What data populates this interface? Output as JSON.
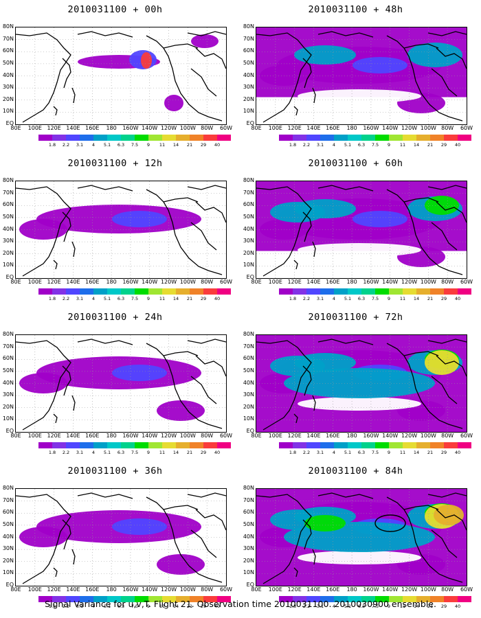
{
  "panels": [
    {
      "title": "2010031100 + 00h",
      "level": 0
    },
    {
      "title": "2010031100 + 48h",
      "level": 3
    },
    {
      "title": "2010031100 + 12h",
      "level": 1
    },
    {
      "title": "2010031100 + 60h",
      "level": 4
    },
    {
      "title": "2010031100 + 24h",
      "level": 2
    },
    {
      "title": "2010031100 + 72h",
      "level": 5
    },
    {
      "title": "2010031100 + 36h",
      "level": 2
    },
    {
      "title": "2010031100 + 84h",
      "level": 6,
      "circle": true
    }
  ],
  "lat_labels": [
    "80N",
    "70N",
    "60N",
    "50N",
    "40N",
    "30N",
    "20N",
    "10N",
    "EQ"
  ],
  "lon_labels": [
    "80E",
    "100E",
    "120E",
    "140E",
    "160E",
    "180",
    "160W",
    "140W",
    "120W",
    "100W",
    "80W",
    "60W"
  ],
  "colorbar": {
    "colors": [
      "#a000c8",
      "#8232e6",
      "#5046ff",
      "#1e6eeb",
      "#00a0c8",
      "#00c8c8",
      "#00d28c",
      "#00dc00",
      "#a0e632",
      "#e6dc32",
      "#e6af2d",
      "#f08228",
      "#fa3c3c",
      "#f00082"
    ],
    "labels": [
      "1.8",
      "2.2",
      "3.1",
      "4",
      "5.1",
      "6.3",
      "7.5",
      "9",
      "11",
      "14",
      "21",
      "29",
      "40"
    ]
  },
  "caption": "Signal Variance for u,v,T. Flight 21. Observation time 2010031100. 2010030900 ensemble."
}
